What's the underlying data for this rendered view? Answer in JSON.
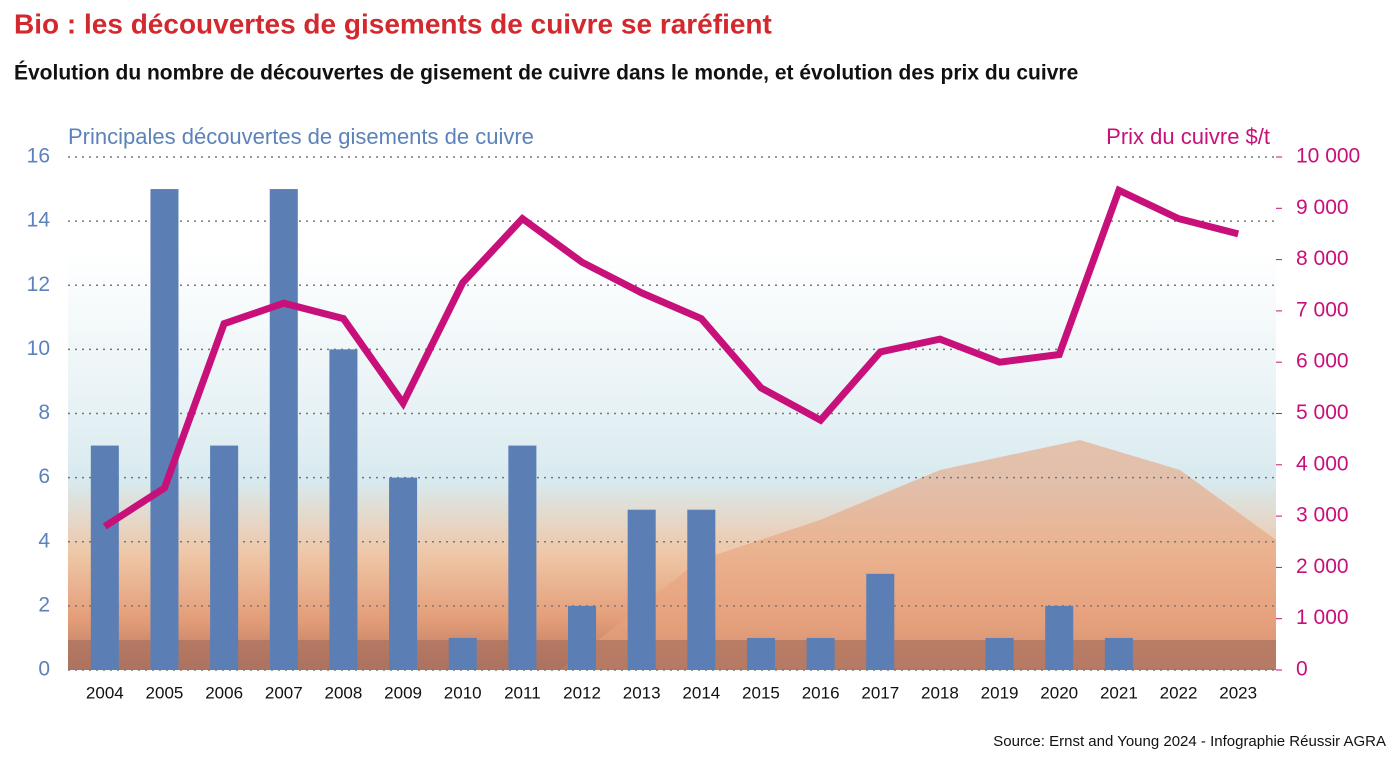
{
  "chart_data": {
    "type": "bar",
    "title": "Bio : les découvertes de gisements de cuivre se raréfient",
    "subtitle": "Évolution du nombre de découvertes de gisement de cuivre dans le monde, et évolution des prix du cuivre",
    "source": "Source: Ernst and Young 2024 - Infographie Réussir AGRA",
    "categories": [
      "2004",
      "2005",
      "2006",
      "2007",
      "2008",
      "2009",
      "2010",
      "2011",
      "2012",
      "2013",
      "2014",
      "2015",
      "2016",
      "2017",
      "2018",
      "2019",
      "2020",
      "2021",
      "2022",
      "2023"
    ],
    "series": [
      {
        "name": "Principales découvertes de gisements de cuivre",
        "type": "bar",
        "color": "#5b7fb5",
        "values": [
          7,
          15,
          7,
          15,
          10,
          6,
          1,
          7,
          2,
          5,
          5,
          1,
          1,
          3,
          0,
          1,
          2,
          1,
          0,
          0
        ]
      },
      {
        "name": "Prix du cuivre $/t",
        "type": "line",
        "axis": "y2",
        "color": "#c8107a",
        "values": [
          2800,
          3550,
          6750,
          7150,
          6850,
          5200,
          7550,
          8800,
          7950,
          7350,
          6850,
          5500,
          4870,
          6200,
          6450,
          6000,
          6150,
          9350,
          8800,
          8500
        ]
      }
    ],
    "ylim": [
      0,
      16
    ],
    "yticks": [
      0,
      2,
      4,
      6,
      8,
      10,
      12,
      14,
      16
    ],
    "y2lim": [
      0,
      10000
    ],
    "y2ticks": [
      0,
      {
        "value": 1000,
        "label": "1 000"
      },
      {
        "value": 2000,
        "label": "2 000"
      },
      {
        "value": 3000,
        "label": "3 000"
      },
      {
        "value": 4000,
        "label": "4 000"
      },
      {
        "value": 5000,
        "label": "5 000"
      },
      {
        "value": 6000,
        "label": "6 000"
      },
      {
        "value": 7000,
        "label": "7 000"
      },
      {
        "value": 8000,
        "label": "8 000"
      },
      {
        "value": 9000,
        "label": "9 000"
      },
      {
        "value": 10000,
        "label": "10 000"
      }
    ],
    "grid": true
  }
}
